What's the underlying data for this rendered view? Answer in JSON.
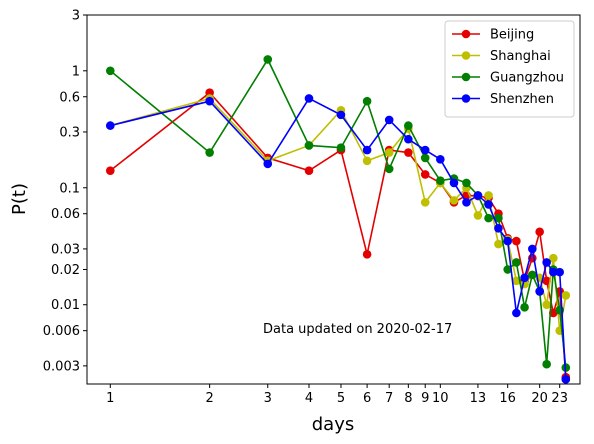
{
  "chart_data": {
    "type": "line",
    "xlabel": "days",
    "ylabel": "P(t)",
    "xscale": "log",
    "yscale": "log",
    "xlim": [
      0.85,
      26.5
    ],
    "ylim": [
      0.0021,
      3
    ],
    "xticks": [
      1,
      2,
      3,
      4,
      5,
      6,
      7,
      8,
      9,
      10,
      13,
      16,
      20,
      23
    ],
    "yticks": [
      0.003,
      0.006,
      0.01,
      0.02,
      0.03,
      0.06,
      0.1,
      0.3,
      0.6,
      1,
      3
    ],
    "ytick_labels": [
      "0.003",
      "0.006",
      "0.01",
      "0.02",
      "0.03",
      "0.06",
      "0.1",
      "0.3",
      "0.6",
      "1",
      "3"
    ],
    "xtick_labels": [
      "1",
      "2",
      "3",
      "4",
      "5",
      "6",
      "7",
      "8",
      "9",
      "10",
      "13",
      "16",
      "20",
      "23"
    ],
    "grid": false,
    "legend_position": "top-right",
    "annotation": "Data updated on 2020-02-17",
    "series": [
      {
        "name": "Beijing",
        "color": "#e50000",
        "x": [
          1,
          2,
          3,
          4,
          5,
          6,
          7,
          8,
          9,
          10,
          11,
          12,
          13,
          14,
          15,
          16,
          17,
          18,
          19,
          20,
          21,
          22,
          23,
          24
        ],
        "y": [
          0.14,
          0.65,
          0.18,
          0.14,
          0.21,
          0.027,
          0.21,
          0.2,
          0.13,
          0.11,
          0.075,
          0.086,
          0.085,
          0.082,
          0.06,
          0.037,
          0.035,
          0.016,
          0.025,
          0.042,
          0.016,
          0.0085,
          0.013,
          0.0024
        ]
      },
      {
        "name": "Shanghai",
        "color": "#bfbf00",
        "x": [
          1,
          2,
          3,
          4,
          5,
          6,
          7,
          8,
          9,
          10,
          11,
          12,
          13,
          14,
          15,
          16,
          17,
          18,
          19,
          20,
          21,
          22,
          23,
          24
        ],
        "y": [
          0.34,
          0.58,
          0.17,
          0.23,
          0.46,
          0.17,
          0.2,
          0.32,
          0.075,
          0.11,
          0.078,
          0.1,
          0.058,
          0.086,
          0.033,
          0.036,
          0.016,
          0.015,
          0.018,
          0.017,
          0.01,
          0.025,
          0.006,
          0.012
        ]
      },
      {
        "name": "Guangzhou",
        "color": "#007f00",
        "x": [
          1,
          2,
          3,
          4,
          5,
          6,
          7,
          8,
          9,
          10,
          11,
          12,
          13,
          14,
          15,
          16,
          17,
          18,
          19,
          20,
          21,
          22,
          23,
          24
        ],
        "y": [
          1.0,
          0.2,
          1.25,
          0.23,
          0.22,
          0.55,
          0.145,
          0.34,
          0.18,
          0.115,
          0.12,
          0.11,
          0.086,
          0.055,
          0.055,
          0.02,
          0.023,
          0.0095,
          0.018,
          0.013,
          0.0031,
          0.02,
          0.009,
          0.0029
        ]
      },
      {
        "name": "Shenzhen",
        "color": "#0000ff",
        "x": [
          1,
          2,
          3,
          4,
          5,
          6,
          7,
          8,
          9,
          10,
          11,
          12,
          13,
          14,
          15,
          16,
          17,
          18,
          19,
          20,
          21,
          22,
          23,
          24
        ],
        "y": [
          0.34,
          0.55,
          0.16,
          0.58,
          0.42,
          0.21,
          0.38,
          0.26,
          0.21,
          0.175,
          0.11,
          0.075,
          0.086,
          0.072,
          0.045,
          0.035,
          0.0085,
          0.017,
          0.03,
          0.013,
          0.023,
          0.019,
          0.019,
          0.0023
        ]
      }
    ]
  }
}
